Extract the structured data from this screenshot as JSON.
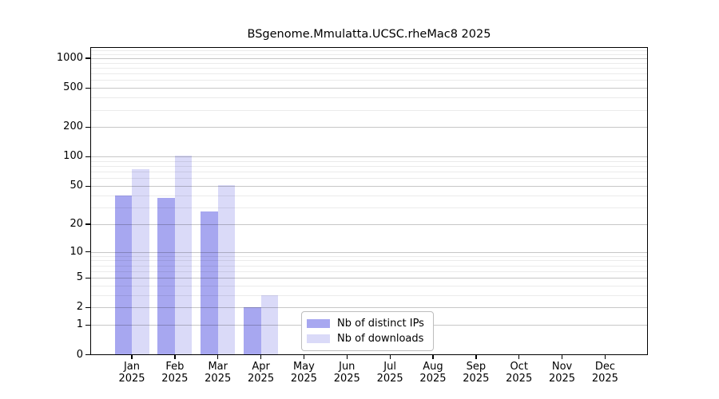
{
  "title": "BSgenome.Mmulatta.UCSC.rheMac8 2025",
  "chart_data": {
    "type": "bar",
    "title": "BSgenome.Mmulatta.UCSC.rheMac8 2025",
    "categories": [
      "Jan",
      "Feb",
      "Mar",
      "Apr",
      "May",
      "Jun",
      "Jul",
      "Aug",
      "Sep",
      "Oct",
      "Nov",
      "Dec"
    ],
    "category_year": "2025",
    "series": [
      {
        "name": "Nb of distinct IPs",
        "color": "#a7a7f0",
        "values": [
          40,
          38,
          27,
          2,
          0,
          0,
          0,
          0,
          0,
          0,
          0,
          0
        ]
      },
      {
        "name": "Nb of downloads",
        "color": "#dadaf8",
        "values": [
          75,
          103,
          51,
          3,
          0,
          0,
          0,
          0,
          0,
          0,
          0,
          0
        ]
      }
    ],
    "xlabel": "",
    "ylabel": "",
    "y_scale": "log10(1+x)",
    "y_major_ticks": [
      0,
      1,
      2,
      5,
      10,
      20,
      50,
      100,
      200,
      500,
      1000
    ],
    "y_minor_ticks": [
      3,
      4,
      6,
      7,
      8,
      9,
      30,
      40,
      60,
      70,
      80,
      90,
      300,
      400,
      600,
      700,
      800,
      900,
      1100,
      1200
    ],
    "ylim": [
      0,
      1280
    ],
    "grid": "horizontal-on",
    "legend_position": "inside-bottom-center",
    "colors": {
      "background": "#ffffff",
      "frame": "#000000",
      "major_grid": "#c6c6c6",
      "minor_grid": "#eaeaea",
      "legend_border": "#bdbdbd"
    }
  }
}
